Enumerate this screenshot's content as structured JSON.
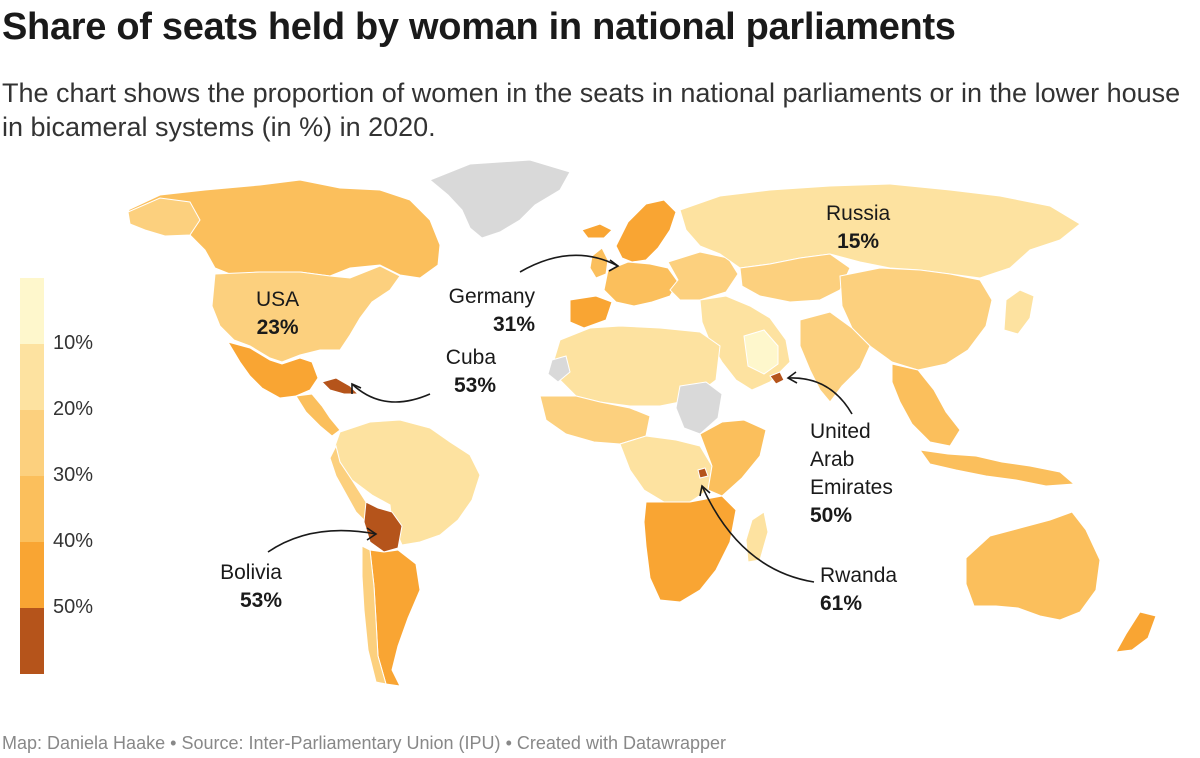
{
  "title": "Share of seats held by woman in national parliaments",
  "subtitle": "The chart shows the proportion of women in the seats in national parliaments or in the lower house in bicameral systems (in %) in 2020.",
  "footer": {
    "map_credit": "Map: Daniela Haake",
    "separator": "•",
    "source": "Source: Inter-Parliamentary Union (IPU)",
    "created_with": "Created with Datawrapper"
  },
  "colors": {
    "bin_0_10": "#fef7cc",
    "bin_10_20": "#fde2a0",
    "bin_20_30": "#fcd07e",
    "bin_30_40": "#fbbf5c",
    "bin_40_50": "#f9a533",
    "bin_50_plus": "#b5541b",
    "no_data": "#d9d9d9",
    "ocean": "#ffffff"
  },
  "legend": {
    "ticks": [
      "10%",
      "20%",
      "30%",
      "40%",
      "50%"
    ]
  },
  "annotations": [
    {
      "country": "Russia",
      "value": "15%"
    },
    {
      "country": "USA",
      "value": "23%"
    },
    {
      "country": "Germany",
      "value": "31%"
    },
    {
      "country": "Cuba",
      "value": "53%"
    },
    {
      "country": "United Arab Emirates",
      "name_lines": [
        "United",
        "Arab",
        "Emirates"
      ],
      "value": "50%"
    },
    {
      "country": "Bolivia",
      "value": "53%"
    },
    {
      "country": "Rwanda",
      "value": "61%"
    }
  ]
}
